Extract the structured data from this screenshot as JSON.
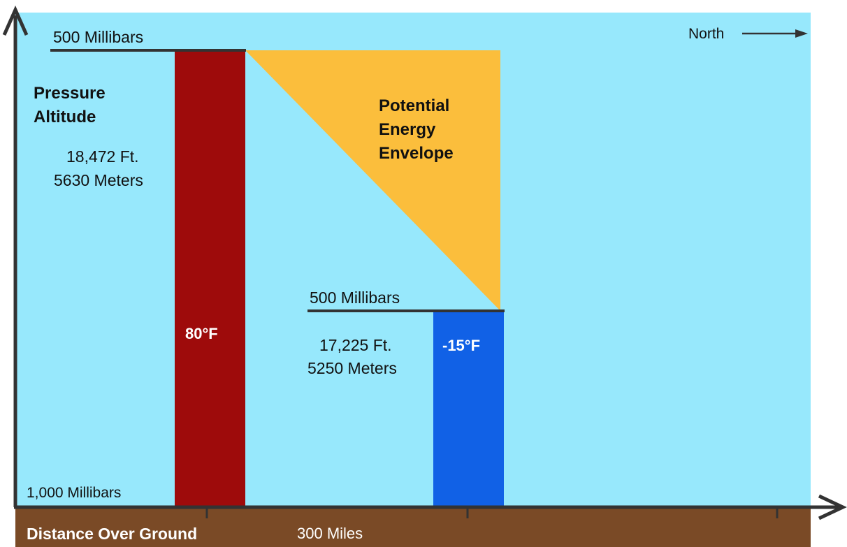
{
  "colors": {
    "sky": "#97E8FC",
    "ground": "#7A4A26",
    "warm_column": "#9E0B0B",
    "cold_column": "#1161E6",
    "envelope": "#FBBE3C",
    "axis": "#333333"
  },
  "labels": {
    "top_pressure_left": "500 Millibars",
    "north": "North",
    "pressure_altitude_line1": "Pressure",
    "pressure_altitude_line2": "Altitude",
    "warm_height_ft": "18,472 Ft.",
    "warm_height_m": "5630 Meters",
    "envelope_line1": "Potential",
    "envelope_line2": "Energy",
    "envelope_line3": "Envelope",
    "top_pressure_right": "500 Millibars",
    "cold_height_ft": "17,225 Ft.",
    "cold_height_m": "5250 Meters",
    "warm_temp": "80°F",
    "cold_temp": "-15°F",
    "bottom_pressure": "1,000 Millibars",
    "distance_over_ground": "Distance Over Ground",
    "distance_value": "300 Miles"
  },
  "icons": {
    "north_arrow": "arrow-right-icon",
    "y_axis_arrow": "arrow-up-icon",
    "x_axis_arrow": "arrow-right-icon"
  }
}
